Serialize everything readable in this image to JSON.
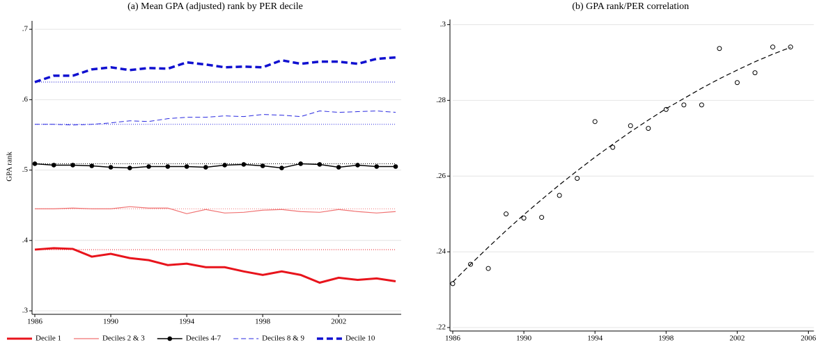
{
  "chart_data": [
    {
      "type": "line",
      "title": "(a) Mean GPA (adjusted) rank by PER decile",
      "y_label": "GPA rank",
      "x": [
        1986,
        1987,
        1988,
        1989,
        1990,
        1991,
        1992,
        1993,
        1994,
        1995,
        1996,
        1997,
        1998,
        1999,
        2000,
        2001,
        2002,
        2003,
        2004,
        2005
      ],
      "xlim": [
        1986,
        2005
      ],
      "xticks": [
        1986,
        1990,
        1994,
        1998,
        2002
      ],
      "ylim": [
        0.3,
        0.71
      ],
      "yticks": [
        {
          "value": 0.3,
          "label": ".3"
        },
        {
          "value": 0.4,
          "label": ".4"
        },
        {
          "value": 0.5,
          "label": ".5"
        },
        {
          "value": 0.6,
          "label": ".6"
        },
        {
          "value": 0.7,
          "label": ".7"
        }
      ],
      "grid": true,
      "reference_lines": true,
      "legend": "bottom",
      "series": [
        {
          "name": "Decile 1",
          "color": "#e8141c",
          "width": 3,
          "dash": "none",
          "values": [
            0.387,
            0.389,
            0.388,
            0.377,
            0.381,
            0.375,
            0.372,
            0.365,
            0.367,
            0.362,
            0.362,
            0.356,
            0.351,
            0.356,
            0.351,
            0.34,
            0.347,
            0.344,
            0.346,
            0.342
          ]
        },
        {
          "name": "Deciles 2 & 3",
          "color": "#f07272",
          "width": 1.2,
          "dash": "none",
          "values": [
            0.445,
            0.445,
            0.446,
            0.445,
            0.445,
            0.448,
            0.446,
            0.446,
            0.438,
            0.444,
            0.439,
            0.44,
            0.443,
            0.444,
            0.441,
            0.44,
            0.444,
            0.441,
            0.439,
            0.441
          ]
        },
        {
          "name": "Deciles 4-7",
          "color": "#000000",
          "width": 1.5,
          "dash": "none",
          "markers": true,
          "values": [
            0.509,
            0.507,
            0.507,
            0.506,
            0.504,
            0.503,
            0.505,
            0.505,
            0.505,
            0.504,
            0.507,
            0.508,
            0.506,
            0.503,
            0.509,
            0.508,
            0.504,
            0.507,
            0.505,
            0.505
          ]
        },
        {
          "name": "Deciles 8 & 9",
          "color": "#2a2ae0",
          "width": 1,
          "dash": "7,4",
          "values": [
            0.565,
            0.565,
            0.564,
            0.565,
            0.567,
            0.57,
            0.569,
            0.573,
            0.575,
            0.575,
            0.577,
            0.576,
            0.579,
            0.578,
            0.576,
            0.584,
            0.582,
            0.583,
            0.584,
            0.582
          ]
        },
        {
          "name": "Decile 10",
          "color": "#1010d0",
          "width": 3.5,
          "dash": "9,5",
          "values": [
            0.625,
            0.634,
            0.634,
            0.643,
            0.646,
            0.642,
            0.645,
            0.644,
            0.653,
            0.65,
            0.646,
            0.647,
            0.646,
            0.656,
            0.651,
            0.654,
            0.654,
            0.651,
            0.658,
            0.66
          ]
        }
      ]
    },
    {
      "type": "scatter",
      "title": "(b) GPA rank/PER correlation",
      "x": [
        1986,
        1987,
        1988,
        1989,
        1990,
        1991,
        1992,
        1993,
        1994,
        1995,
        1996,
        1997,
        1998,
        1999,
        2000,
        2001,
        2002,
        2003,
        2004,
        2005
      ],
      "values": [
        0.2316,
        0.2367,
        0.2356,
        0.25,
        0.2489,
        0.2491,
        0.2549,
        0.2594,
        0.2744,
        0.2676,
        0.2733,
        0.2726,
        0.2776,
        0.2788,
        0.2788,
        0.2937,
        0.2847,
        0.2873,
        0.2941,
        0.2941
      ],
      "color": "#000000",
      "fit": {
        "values": [
          0.232,
          0.2367,
          0.2412,
          0.2456,
          0.2498,
          0.2538,
          0.2577,
          0.2614,
          0.265,
          0.2684,
          0.2717,
          0.2748,
          0.2778,
          0.2805,
          0.2832,
          0.2857,
          0.288,
          0.2902,
          0.2922,
          0.294
        ],
        "color": "#000000",
        "dash": "7,4"
      },
      "xlim": [
        1986,
        2006
      ],
      "xticks": [
        1986,
        1990,
        1994,
        1998,
        2002,
        2006
      ],
      "ylim": [
        0.22,
        0.301
      ],
      "yticks": [
        {
          "value": 0.22,
          "label": ".22"
        },
        {
          "value": 0.24,
          "label": ".24"
        },
        {
          "value": 0.26,
          "label": ".26"
        },
        {
          "value": 0.28,
          "label": ".28"
        },
        {
          "value": 0.3,
          "label": ".3"
        }
      ],
      "grid": true
    }
  ]
}
